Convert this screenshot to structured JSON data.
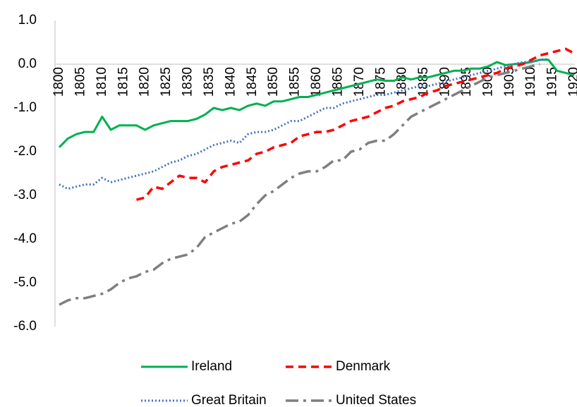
{
  "chart_data": {
    "type": "line",
    "x": [
      1800,
      1802,
      1804,
      1806,
      1808,
      1810,
      1812,
      1814,
      1816,
      1818,
      1820,
      1822,
      1824,
      1826,
      1828,
      1830,
      1832,
      1834,
      1836,
      1838,
      1840,
      1842,
      1844,
      1846,
      1848,
      1850,
      1852,
      1854,
      1856,
      1858,
      1860,
      1862,
      1864,
      1866,
      1868,
      1870,
      1872,
      1874,
      1876,
      1878,
      1880,
      1882,
      1884,
      1886,
      1888,
      1890,
      1892,
      1894,
      1896,
      1898,
      1900,
      1902,
      1904,
      1906,
      1908,
      1910,
      1912,
      1914,
      1916,
      1918,
      1920
    ],
    "series": [
      {
        "name": "Ireland",
        "color": "#00b050",
        "style": "solid",
        "values": [
          -1.9,
          -1.7,
          -1.6,
          -1.55,
          -1.55,
          -1.2,
          -1.5,
          -1.4,
          -1.4,
          -1.4,
          -1.5,
          -1.4,
          -1.35,
          -1.3,
          -1.3,
          -1.3,
          -1.25,
          -1.15,
          -1.0,
          -1.05,
          -1.0,
          -1.05,
          -0.95,
          -0.9,
          -0.95,
          -0.85,
          -0.85,
          -0.8,
          -0.75,
          -0.75,
          -0.7,
          -0.65,
          -0.6,
          -0.55,
          -0.5,
          -0.45,
          -0.4,
          -0.35,
          -0.38,
          -0.38,
          -0.3,
          -0.35,
          -0.3,
          -0.3,
          -0.25,
          -0.2,
          -0.15,
          -0.15,
          -0.1,
          -0.1,
          -0.05,
          0.05,
          -0.02,
          0.0,
          0.02,
          0.05,
          0.1,
          0.1,
          -0.15,
          -0.2,
          -0.25
        ]
      },
      {
        "name": "Denmark",
        "color": "#ff0000",
        "style": "dashed",
        "values": [
          null,
          null,
          null,
          null,
          null,
          null,
          null,
          null,
          null,
          -3.1,
          -3.05,
          -2.8,
          -2.85,
          -2.7,
          -2.55,
          -2.6,
          -2.6,
          -2.7,
          -2.45,
          -2.35,
          -2.3,
          -2.25,
          -2.2,
          -2.05,
          -2.0,
          -1.9,
          -1.85,
          -1.8,
          -1.65,
          -1.6,
          -1.55,
          -1.55,
          -1.5,
          -1.4,
          -1.3,
          -1.25,
          -1.2,
          -1.1,
          -1.0,
          -0.95,
          -0.85,
          -0.8,
          -0.75,
          -0.65,
          -0.6,
          -0.5,
          -0.45,
          -0.4,
          -0.35,
          -0.3,
          -0.25,
          -0.2,
          -0.1,
          -0.05,
          0.0,
          0.1,
          0.2,
          0.25,
          0.3,
          0.35,
          0.25
        ]
      },
      {
        "name": "Great Britain",
        "color": "#4472c4",
        "style": "dotted",
        "values": [
          -2.75,
          -2.85,
          -2.8,
          -2.75,
          -2.75,
          -2.6,
          -2.7,
          -2.65,
          -2.6,
          -2.55,
          -2.5,
          -2.45,
          -2.35,
          -2.25,
          -2.2,
          -2.1,
          -2.05,
          -1.95,
          -1.85,
          -1.8,
          -1.75,
          -1.8,
          -1.6,
          -1.55,
          -1.55,
          -1.5,
          -1.4,
          -1.3,
          -1.3,
          -1.2,
          -1.1,
          -1.0,
          -1.0,
          -0.9,
          -0.85,
          -0.8,
          -0.75,
          -0.7,
          -0.7,
          -0.65,
          -0.6,
          -0.55,
          -0.5,
          -0.5,
          -0.45,
          -0.4,
          -0.35,
          -0.3,
          -0.25,
          -0.2,
          -0.15,
          -0.1,
          -0.05,
          0.0,
          0.05,
          0.05,
          0.1,
          0.12,
          null,
          null,
          null
        ]
      },
      {
        "name": "United States",
        "color": "#7f7f7f",
        "style": "dashdot",
        "values": [
          -5.5,
          -5.4,
          -5.35,
          -5.35,
          -5.3,
          -5.25,
          -5.15,
          -5.0,
          -4.9,
          -4.85,
          -4.75,
          -4.7,
          -4.55,
          -4.45,
          -4.4,
          -4.35,
          -4.2,
          -3.95,
          -3.85,
          -3.75,
          -3.65,
          -3.6,
          -3.45,
          -3.2,
          -3.0,
          -2.9,
          -2.75,
          -2.6,
          -2.5,
          -2.45,
          -2.45,
          -2.35,
          -2.2,
          -2.2,
          -2.0,
          -1.95,
          -1.8,
          -1.75,
          -1.75,
          -1.6,
          -1.4,
          -1.2,
          -1.1,
          -1.0,
          -0.9,
          -0.8,
          -0.7,
          -0.6,
          -0.5,
          -0.4,
          -0.3,
          -0.25,
          -0.2,
          -0.15,
          -0.1,
          -0.05,
          0.0,
          null,
          null,
          null,
          null
        ]
      }
    ],
    "xlim": [
      1800,
      1920
    ],
    "xticks": [
      1800,
      1805,
      1810,
      1815,
      1820,
      1825,
      1830,
      1835,
      1840,
      1845,
      1850,
      1855,
      1860,
      1865,
      1870,
      1875,
      1880,
      1885,
      1890,
      1895,
      1900,
      1905,
      1910,
      1915,
      1920
    ],
    "ylim": [
      -6,
      1
    ],
    "yticks": [
      {
        "value": 1,
        "label": "1.0"
      },
      {
        "value": 0,
        "label": "0.0"
      },
      {
        "value": -1,
        "label": "-1.0"
      },
      {
        "value": -2,
        "label": "-2.0"
      },
      {
        "value": -3,
        "label": "-3.0"
      },
      {
        "value": -4,
        "label": "-4.0"
      },
      {
        "value": -5,
        "label": "-5.0"
      },
      {
        "value": -6,
        "label": "-6.0"
      }
    ],
    "grid": false,
    "legend": "bottom"
  }
}
